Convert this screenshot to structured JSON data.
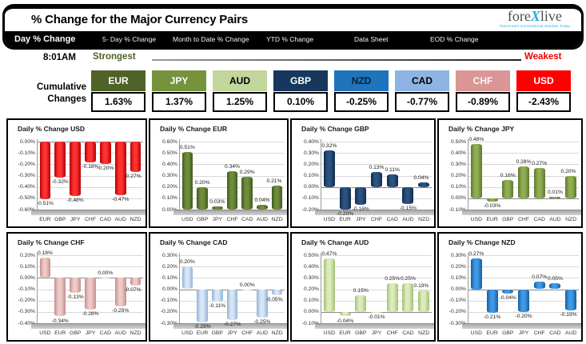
{
  "header": {
    "title": "% Change for the Major Currency Pairs",
    "logo": {
      "fore": "fore",
      "x": "X",
      "live": "live",
      "tagline": "Tomorrow's Conventional Wisdom Today"
    },
    "tabs": [
      {
        "label": "Day % Change",
        "active": true
      },
      {
        "label": "5- Day % Change",
        "active": false
      },
      {
        "label": "Month to Date % Change",
        "active": false
      },
      {
        "label": "YTD % Change",
        "active": false
      },
      {
        "label": "Data Sheet",
        "active": false
      },
      {
        "label": "EOD % Change",
        "active": false
      }
    ]
  },
  "ranking": {
    "time": "8:01AM",
    "strongest_label": "Strongest",
    "weakest_label": "Weakest",
    "cumulative_label": "Cumulative Changes",
    "currencies": [
      {
        "code": "EUR",
        "value": "1.63%",
        "bg": "#4f6228",
        "fg": "#ffffff"
      },
      {
        "code": "JPY",
        "value": "1.37%",
        "bg": "#76923c",
        "fg": "#ffffff"
      },
      {
        "code": "AUD",
        "value": "1.25%",
        "bg": "#c3d69b",
        "fg": "#000000"
      },
      {
        "code": "GBP",
        "value": "0.10%",
        "bg": "#17375d",
        "fg": "#ffffff"
      },
      {
        "code": "NZD",
        "value": "-0.25%",
        "bg": "#1f74bc",
        "fg": "#08203a"
      },
      {
        "code": "CAD",
        "value": "-0.77%",
        "bg": "#8db4e2",
        "fg": "#000000"
      },
      {
        "code": "CHF",
        "value": "-0.89%",
        "bg": "#d99694",
        "fg": "#fdf6f6"
      },
      {
        "code": "USD",
        "value": "-2.43%",
        "bg": "#fe0000",
        "fg": "#ffffff"
      }
    ]
  },
  "chart_data": [
    {
      "type": "bar",
      "title": "Daily % Change USD",
      "grid": true,
      "legend": false,
      "categories": [
        "EUR",
        "GBP",
        "JPY",
        "CHF",
        "CAD",
        "AUD",
        "NZD"
      ],
      "values": [
        -0.51,
        -0.32,
        -0.48,
        -0.18,
        -0.2,
        -0.47,
        -0.27
      ],
      "value_labels": [
        "-0.51%",
        "-0.32%",
        "-0.48%",
        "-0.18%",
        "-0.20%",
        "-0.47%",
        "-0.27%"
      ],
      "ylim": [
        -0.6,
        0.0
      ],
      "ytick_step": 0.1,
      "bar_edge": "#b50000",
      "bar_mid": "#ff3232"
    },
    {
      "type": "bar",
      "title": "Daily % Change EUR",
      "grid": true,
      "legend": false,
      "categories": [
        "USD",
        "GBP",
        "JPY",
        "CHF",
        "CAD",
        "AUD",
        "NZD"
      ],
      "values": [
        0.51,
        0.2,
        0.03,
        0.34,
        0.29,
        0.04,
        0.21
      ],
      "value_labels": [
        "0.51%",
        "0.20%",
        "0.03%",
        "0.34%",
        "0.29%",
        "0.04%",
        "0.21%"
      ],
      "ylim": [
        0.0,
        0.6
      ],
      "ytick_step": 0.1,
      "bar_edge": "#415a1e",
      "bar_mid": "#6f8c3c"
    },
    {
      "type": "bar",
      "title": "Daily % Change GBP",
      "grid": true,
      "legend": false,
      "categories": [
        "USD",
        "EUR",
        "JPY",
        "CHF",
        "CAD",
        "AUD",
        "NZD"
      ],
      "values": [
        0.32,
        -0.2,
        -0.16,
        0.13,
        0.11,
        -0.15,
        0.04
      ],
      "value_labels": [
        "0.32%",
        "-0.20%",
        "-0.16%",
        "0.13%",
        "0.11%",
        "-0.15%",
        "0.04%"
      ],
      "ylim": [
        -0.2,
        0.4
      ],
      "ytick_step": 0.1,
      "bar_edge": "#122b4d",
      "bar_mid": "#2a5380"
    },
    {
      "type": "bar",
      "title": "Daily % Change JPY",
      "grid": true,
      "legend": false,
      "categories": [
        "USD",
        "EUR",
        "GBP",
        "CHF",
        "CAD",
        "AUD",
        "NZD"
      ],
      "values": [
        0.48,
        -0.03,
        0.16,
        0.28,
        0.27,
        0.01,
        0.2
      ],
      "value_labels": [
        "0.48%",
        "-0.03%",
        "0.16%",
        "0.28%",
        "0.27%",
        "0.01%",
        "0.20%"
      ],
      "ylim": [
        -0.1,
        0.5
      ],
      "ytick_step": 0.1,
      "bar_edge": "#61772e",
      "bar_mid": "#90ae52"
    },
    {
      "type": "bar",
      "title": "Daily % Change CHF",
      "grid": true,
      "legend": false,
      "categories": [
        "USD",
        "EUR",
        "GBP",
        "JPY",
        "CAD",
        "AUD",
        "NZD"
      ],
      "values": [
        0.18,
        -0.34,
        -0.13,
        -0.28,
        0.0,
        -0.25,
        -0.07
      ],
      "value_labels": [
        "0.18%",
        "-0.34%",
        "-0.13%",
        "-0.28%",
        "0.00%",
        "-0.25%",
        "-0.07%"
      ],
      "ylim": [
        -0.4,
        0.2
      ],
      "ytick_step": 0.1,
      "bar_edge": "#c38e8c",
      "bar_mid": "#edc9c7"
    },
    {
      "type": "bar",
      "title": "Daily % Change CAD",
      "grid": true,
      "legend": false,
      "categories": [
        "USD",
        "EUR",
        "GBP",
        "JPY",
        "CHF",
        "AUD",
        "NZD"
      ],
      "values": [
        0.2,
        -0.29,
        -0.11,
        -0.27,
        0.0,
        -0.25,
        -0.05
      ],
      "value_labels": [
        "0.20%",
        "-0.29%",
        "-0.11%",
        "-0.27%",
        "0.00%",
        "-0.25%",
        "-0.05%"
      ],
      "ylim": [
        -0.3,
        0.3
      ],
      "ytick_step": 0.1,
      "bar_edge": "#8fb2d9",
      "bar_mid": "#d7e5f4"
    },
    {
      "type": "bar",
      "title": "Daily % Change AUD",
      "grid": true,
      "legend": false,
      "categories": [
        "USD",
        "EUR",
        "GBP",
        "JPY",
        "CHF",
        "CAD",
        "NZD"
      ],
      "values": [
        0.47,
        -0.04,
        0.15,
        -0.01,
        0.25,
        0.25,
        0.19
      ],
      "value_labels": [
        "0.47%",
        "-0.04%",
        "0.15%",
        "-0.01%",
        "0.25%",
        "0.25%",
        "0.19%"
      ],
      "ylim": [
        -0.1,
        0.5
      ],
      "ytick_step": 0.1,
      "bar_edge": "#a6bf72",
      "bar_mid": "#dcebbd"
    },
    {
      "type": "bar",
      "title": "Daily % Change NZD",
      "grid": true,
      "legend": false,
      "categories": [
        "USD",
        "EUR",
        "GBP",
        "JPY",
        "CHF",
        "CAD",
        "AUD"
      ],
      "values": [
        0.27,
        -0.21,
        -0.04,
        -0.2,
        0.07,
        0.05,
        -0.19
      ],
      "value_labels": [
        "0.27%",
        "-0.21%",
        "-0.04%",
        "-0.20%",
        "0.07%",
        "0.05%",
        "-0.19%"
      ],
      "ylim": [
        -0.3,
        0.3
      ],
      "ytick_step": 0.1,
      "bar_edge": "#145f9f",
      "bar_mid": "#3e99e6"
    }
  ]
}
